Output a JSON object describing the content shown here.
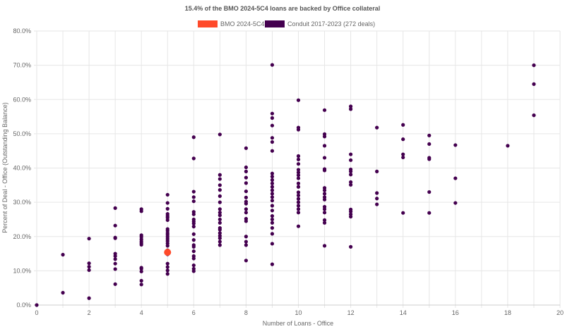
{
  "chart_data": {
    "type": "scatter",
    "title": "15.4% of the BMO 2024-5C4 loans are backed by Office collateral",
    "xlabel": "Number of Loans - Office",
    "ylabel": "Percent of Deal - Office (Outstanding Balance)",
    "xlim": [
      0,
      20
    ],
    "ylim": [
      0,
      80
    ],
    "x_ticks": [
      "0",
      "2",
      "4",
      "6",
      "8",
      "10",
      "12",
      "14",
      "16",
      "18",
      "20"
    ],
    "y_ticks": [
      "0.0%",
      "10.0%",
      "20.0%",
      "30.0%",
      "40.0%",
      "50.0%",
      "60.0%",
      "70.0%",
      "80.0%"
    ],
    "grid": true,
    "legend_position": "top",
    "series": [
      {
        "name": "BMO 2024-5C4",
        "color": "#ff4a2a",
        "points": [
          [
            5,
            15.4
          ]
        ]
      },
      {
        "name": "Conduit 2017-2023 (272 deals)",
        "color": "#44004f",
        "points": [
          [
            0,
            0
          ],
          [
            1,
            14.7
          ],
          [
            1,
            3.6
          ],
          [
            2,
            19.4
          ],
          [
            2,
            12.2
          ],
          [
            2,
            11.2
          ],
          [
            2,
            10.2
          ],
          [
            2,
            2.0
          ],
          [
            3,
            28.3
          ],
          [
            3,
            23.2
          ],
          [
            3,
            19.7
          ],
          [
            3,
            19.5
          ],
          [
            3,
            15.0
          ],
          [
            3,
            14.3
          ],
          [
            3,
            13.4
          ],
          [
            3,
            12.1
          ],
          [
            3,
            10.5
          ],
          [
            3,
            6.1
          ],
          [
            4,
            28.0
          ],
          [
            4,
            27.4
          ],
          [
            4,
            20.4
          ],
          [
            4,
            19.9
          ],
          [
            4,
            19.2
          ],
          [
            4,
            18.6
          ],
          [
            4,
            18.1
          ],
          [
            4,
            17.6
          ],
          [
            4,
            10.9
          ],
          [
            4,
            10.6
          ],
          [
            4,
            9.8
          ],
          [
            4,
            7.1
          ],
          [
            4,
            6.0
          ],
          [
            5,
            32.2
          ],
          [
            5,
            29.8
          ],
          [
            5,
            28.1
          ],
          [
            5,
            26.6
          ],
          [
            5,
            26.0
          ],
          [
            5,
            25.5
          ],
          [
            5,
            24.8
          ],
          [
            5,
            22.2
          ],
          [
            5,
            21.7
          ],
          [
            5,
            21.0
          ],
          [
            5,
            20.5
          ],
          [
            5,
            19.9
          ],
          [
            5,
            19.3
          ],
          [
            5,
            18.7
          ],
          [
            5,
            18.0
          ],
          [
            5,
            17.3
          ],
          [
            5,
            16.0
          ],
          [
            5,
            14.8
          ],
          [
            5,
            12.1
          ],
          [
            5,
            11.1
          ],
          [
            5,
            10.1
          ],
          [
            5,
            9.1
          ],
          [
            6,
            49.0
          ],
          [
            6,
            42.8
          ],
          [
            6,
            33.1
          ],
          [
            6,
            31.5
          ],
          [
            6,
            30.3
          ],
          [
            6,
            27.2
          ],
          [
            6,
            26.5
          ],
          [
            6,
            25.0
          ],
          [
            6,
            24.4
          ],
          [
            6,
            23.8
          ],
          [
            6,
            22.9
          ],
          [
            6,
            20.7
          ],
          [
            6,
            19.0
          ],
          [
            6,
            17.5
          ],
          [
            6,
            17.0
          ],
          [
            6,
            15.7
          ],
          [
            6,
            14.3
          ],
          [
            6,
            13.6
          ],
          [
            6,
            11.6
          ],
          [
            6,
            10.6
          ],
          [
            6,
            9.9
          ],
          [
            7,
            49.8
          ],
          [
            7,
            38.0
          ],
          [
            7,
            36.8
          ],
          [
            7,
            35.0
          ],
          [
            7,
            33.6
          ],
          [
            7,
            31.8
          ],
          [
            7,
            30.0
          ],
          [
            7,
            28.0
          ],
          [
            7,
            27.0
          ],
          [
            7,
            26.2
          ],
          [
            7,
            25.0
          ],
          [
            7,
            24.0
          ],
          [
            7,
            22.5
          ],
          [
            7,
            22.0
          ],
          [
            7,
            21.0
          ],
          [
            7,
            20.2
          ],
          [
            7,
            19.5
          ],
          [
            7,
            18.5
          ],
          [
            7,
            17.5
          ],
          [
            8,
            45.8
          ],
          [
            8,
            40.2
          ],
          [
            8,
            39.0
          ],
          [
            8,
            37.2
          ],
          [
            8,
            35.6
          ],
          [
            8,
            33.2
          ],
          [
            8,
            31.4
          ],
          [
            8,
            30.2
          ],
          [
            8,
            29.6
          ],
          [
            8,
            28.0
          ],
          [
            8,
            27.0
          ],
          [
            8,
            25.2
          ],
          [
            8,
            24.5
          ],
          [
            8,
            20.0
          ],
          [
            8,
            18.5
          ],
          [
            8,
            17.5
          ],
          [
            8,
            13.0
          ],
          [
            9,
            70.1
          ],
          [
            9,
            55.9
          ],
          [
            9,
            54.6
          ],
          [
            9,
            52.4
          ],
          [
            9,
            48.8
          ],
          [
            9,
            47.6
          ],
          [
            9,
            45.0
          ],
          [
            9,
            38.4
          ],
          [
            9,
            37.5
          ],
          [
            9,
            36.5
          ],
          [
            9,
            35.5
          ],
          [
            9,
            34.5
          ],
          [
            9,
            33.5
          ],
          [
            9,
            32.5
          ],
          [
            9,
            31.5
          ],
          [
            9,
            30.5
          ],
          [
            9,
            29.0
          ],
          [
            9,
            27.6
          ],
          [
            9,
            26.0
          ],
          [
            9,
            25.0
          ],
          [
            9,
            24.0
          ],
          [
            9,
            22.5
          ],
          [
            9,
            20.8
          ],
          [
            9,
            17.9
          ],
          [
            9,
            11.9
          ],
          [
            10,
            59.8
          ],
          [
            10,
            51.8
          ],
          [
            10,
            51.2
          ],
          [
            10,
            43.5
          ],
          [
            10,
            42.5
          ],
          [
            10,
            41.2
          ],
          [
            10,
            39.5
          ],
          [
            10,
            38.7
          ],
          [
            10,
            37.9
          ],
          [
            10,
            37.0
          ],
          [
            10,
            35.5
          ],
          [
            10,
            34.5
          ],
          [
            10,
            32.9
          ],
          [
            10,
            32.0
          ],
          [
            10,
            31.0
          ],
          [
            10,
            30.0
          ],
          [
            10,
            29.0
          ],
          [
            10,
            28.0
          ],
          [
            10,
            27.0
          ],
          [
            10,
            23.0
          ],
          [
            11,
            56.9
          ],
          [
            11,
            49.9
          ],
          [
            11,
            49.2
          ],
          [
            11,
            46.5
          ],
          [
            11,
            43.0
          ],
          [
            11,
            39.7
          ],
          [
            11,
            39.3
          ],
          [
            11,
            34.2
          ],
          [
            11,
            33.5
          ],
          [
            11,
            32.5
          ],
          [
            11,
            31.5
          ],
          [
            11,
            30.8
          ],
          [
            11,
            28.7
          ],
          [
            11,
            28.0
          ],
          [
            11,
            27.0
          ],
          [
            11,
            24.8
          ],
          [
            11,
            24.0
          ],
          [
            11,
            17.3
          ],
          [
            12,
            58.0
          ],
          [
            12,
            57.2
          ],
          [
            12,
            44.0
          ],
          [
            12,
            42.3
          ],
          [
            12,
            39.6
          ],
          [
            12,
            39.0
          ],
          [
            12,
            38.1
          ],
          [
            12,
            35.9
          ],
          [
            12,
            35.1
          ],
          [
            12,
            27.9
          ],
          [
            12,
            27.3
          ],
          [
            12,
            26.5
          ],
          [
            12,
            25.8
          ],
          [
            12,
            17.0
          ],
          [
            13,
            51.8
          ],
          [
            13,
            39.0
          ],
          [
            13,
            32.7
          ],
          [
            13,
            31.1
          ],
          [
            13,
            29.4
          ],
          [
            14,
            52.6
          ],
          [
            14,
            48.4
          ],
          [
            14,
            44.0
          ],
          [
            14,
            43.1
          ],
          [
            14,
            26.9
          ],
          [
            15,
            49.5
          ],
          [
            15,
            47.0
          ],
          [
            15,
            43.0
          ],
          [
            15,
            42.6
          ],
          [
            15,
            33.0
          ],
          [
            15,
            26.9
          ],
          [
            16,
            46.7
          ],
          [
            16,
            37.0
          ],
          [
            16,
            29.8
          ],
          [
            18,
            46.5
          ],
          [
            19,
            70.0
          ],
          [
            19,
            64.5
          ],
          [
            19,
            55.4
          ]
        ]
      }
    ]
  }
}
